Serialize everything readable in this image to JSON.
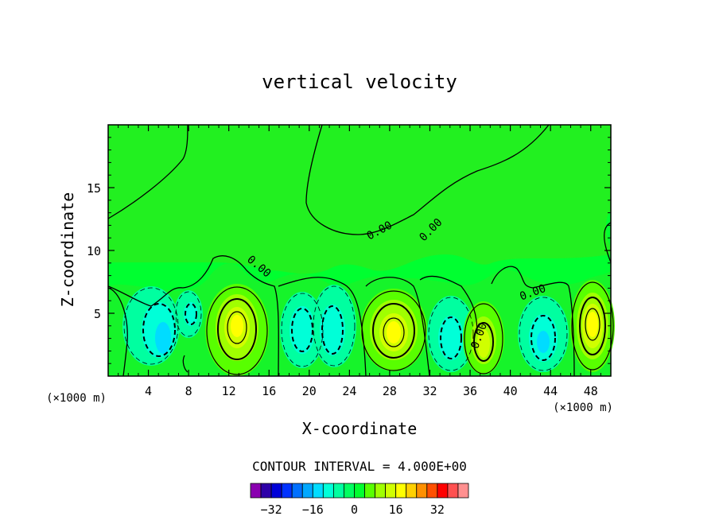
{
  "chart_data": {
    "type": "contour",
    "title": "vertical velocity",
    "xlabel": "X-coordinate",
    "ylabel": "Z-coordinate",
    "x_unit_left": "(×1000 m)",
    "x_unit_right": "(×1000 m)",
    "xlim": [
      0,
      50
    ],
    "ylim": [
      0,
      20
    ],
    "x_ticks": [
      4,
      8,
      12,
      16,
      20,
      24,
      28,
      32,
      36,
      40,
      44,
      48
    ],
    "y_ticks": [
      5,
      10,
      15
    ],
    "contour_interval_text": "CONTOUR INTERVAL = 4.000E+00",
    "contour_labels": [
      "0.00",
      "0.00",
      "0.00",
      "0.00",
      "0.00"
    ],
    "colorbar": {
      "levels": [
        -36,
        -32,
        -28,
        -24,
        -20,
        -16,
        -12,
        -8,
        -4,
        0,
        4,
        8,
        12,
        16,
        20,
        24,
        28,
        32,
        36
      ],
      "tick_labels": [
        -32,
        -16,
        0,
        16,
        32
      ],
      "colors": [
        "#8a00b0",
        "#2e00a8",
        "#0000d8",
        "#0032ff",
        "#0070ff",
        "#00a8ff",
        "#00dcff",
        "#00ffd8",
        "#00ffa0",
        "#00ff60",
        "#00ff30",
        "#58ff00",
        "#a0ff00",
        "#d0ff00",
        "#ffff00",
        "#ffd000",
        "#ff9000",
        "#ff5000",
        "#ff0000",
        "#ff5050",
        "#ff9090"
      ]
    },
    "cells": [
      {
        "x": 3,
        "z": 3,
        "value": -10
      },
      {
        "x": 5.5,
        "z": 3,
        "value": -12
      },
      {
        "x": 8,
        "z": 4.5,
        "value": -6
      },
      {
        "x": 13,
        "z": 3.5,
        "value": 16
      },
      {
        "x": 19,
        "z": 3.5,
        "value": -10
      },
      {
        "x": 22,
        "z": 3.5,
        "value": -12
      },
      {
        "x": 29,
        "z": 3.5,
        "value": 16
      },
      {
        "x": 34,
        "z": 3,
        "value": -10
      },
      {
        "x": 37.5,
        "z": 2.5,
        "value": 14
      },
      {
        "x": 43,
        "z": 3,
        "value": -12
      },
      {
        "x": 48,
        "z": 4,
        "value": 18
      }
    ]
  }
}
